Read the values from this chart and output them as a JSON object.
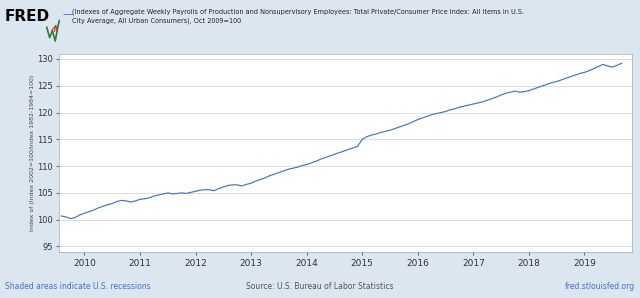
{
  "title_line1": "(Indexes of Aggregate Weekly Payrolls of Production and Nonsupervisory Employees: Total Private/Consumer Price Index: All Items in U.S.",
  "title_line2": "City Average, All Urban Consumers), Oct 2009=100",
  "ylabel": "Index of (Index 2002=100/Index 1982-1984=100)",
  "source_text": "Source: U.S. Bureau of Labor Statistics",
  "shaded_text": "Shaded areas indicate U.S. recessions",
  "url_text": "fred.stlouisfed.org",
  "line_color": "#4472c4",
  "outer_bg_color": "#dce6f1",
  "plot_bg_color": "#ffffff",
  "footer_color": "#4472c4",
  "ylim": [
    94,
    131
  ],
  "yticks": [
    95,
    100,
    105,
    110,
    115,
    120,
    125,
    130
  ],
  "xlim_start": 2009.54,
  "xlim_end": 2019.85,
  "xtick_years": [
    2010,
    2011,
    2012,
    2013,
    2014,
    2015,
    2016,
    2017,
    2018,
    2019
  ],
  "data_x": [
    2009.583,
    2009.667,
    2009.75,
    2009.833,
    2009.917,
    2010.0,
    2010.083,
    2010.167,
    2010.25,
    2010.333,
    2010.417,
    2010.5,
    2010.583,
    2010.667,
    2010.75,
    2010.833,
    2010.917,
    2011.0,
    2011.083,
    2011.167,
    2011.25,
    2011.333,
    2011.417,
    2011.5,
    2011.583,
    2011.667,
    2011.75,
    2011.833,
    2011.917,
    2012.0,
    2012.083,
    2012.167,
    2012.25,
    2012.333,
    2012.417,
    2012.5,
    2012.583,
    2012.667,
    2012.75,
    2012.833,
    2012.917,
    2013.0,
    2013.083,
    2013.167,
    2013.25,
    2013.333,
    2013.417,
    2013.5,
    2013.583,
    2013.667,
    2013.75,
    2013.833,
    2013.917,
    2014.0,
    2014.083,
    2014.167,
    2014.25,
    2014.333,
    2014.417,
    2014.5,
    2014.583,
    2014.667,
    2014.75,
    2014.833,
    2014.917,
    2015.0,
    2015.083,
    2015.167,
    2015.25,
    2015.333,
    2015.417,
    2015.5,
    2015.583,
    2015.667,
    2015.75,
    2015.833,
    2015.917,
    2016.0,
    2016.083,
    2016.167,
    2016.25,
    2016.333,
    2016.417,
    2016.5,
    2016.583,
    2016.667,
    2016.75,
    2016.833,
    2016.917,
    2017.0,
    2017.083,
    2017.167,
    2017.25,
    2017.333,
    2017.417,
    2017.5,
    2017.583,
    2017.667,
    2017.75,
    2017.833,
    2017.917,
    2018.0,
    2018.083,
    2018.167,
    2018.25,
    2018.333,
    2018.417,
    2018.5,
    2018.583,
    2018.667,
    2018.75,
    2018.833,
    2018.917,
    2019.0,
    2019.083,
    2019.167,
    2019.25,
    2019.333,
    2019.417,
    2019.5,
    2019.583,
    2019.667
  ],
  "data_y": [
    100.7,
    100.5,
    100.2,
    100.4,
    100.9,
    101.2,
    101.5,
    101.8,
    102.2,
    102.5,
    102.8,
    103.0,
    103.4,
    103.6,
    103.5,
    103.3,
    103.5,
    103.8,
    103.9,
    104.1,
    104.4,
    104.6,
    104.8,
    105.0,
    104.8,
    104.9,
    105.0,
    104.9,
    105.1,
    105.3,
    105.5,
    105.6,
    105.6,
    105.4,
    105.8,
    106.1,
    106.4,
    106.5,
    106.5,
    106.3,
    106.6,
    106.8,
    107.2,
    107.5,
    107.8,
    108.2,
    108.5,
    108.8,
    109.1,
    109.4,
    109.6,
    109.8,
    110.1,
    110.3,
    110.6,
    110.9,
    111.3,
    111.6,
    111.9,
    112.2,
    112.5,
    112.8,
    113.1,
    113.4,
    113.7,
    115.0,
    115.5,
    115.8,
    116.0,
    116.3,
    116.5,
    116.7,
    117.0,
    117.3,
    117.6,
    117.9,
    118.3,
    118.7,
    119.0,
    119.3,
    119.6,
    119.8,
    120.0,
    120.2,
    120.5,
    120.7,
    121.0,
    121.2,
    121.4,
    121.6,
    121.8,
    122.0,
    122.3,
    122.6,
    122.9,
    123.3,
    123.6,
    123.8,
    124.0,
    123.8,
    123.9,
    124.1,
    124.4,
    124.7,
    125.0,
    125.3,
    125.6,
    125.8,
    126.1,
    126.4,
    126.7,
    127.0,
    127.3,
    127.5,
    127.8,
    128.2,
    128.6,
    129.0,
    128.7,
    128.5,
    128.8,
    129.2
  ]
}
